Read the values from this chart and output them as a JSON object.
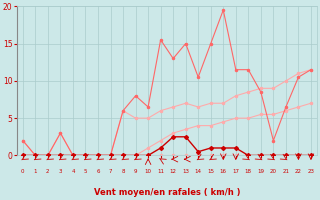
{
  "x": [
    0,
    1,
    2,
    3,
    4,
    5,
    6,
    7,
    8,
    9,
    10,
    11,
    12,
    13,
    14,
    15,
    16,
    17,
    18,
    19,
    20,
    21,
    22,
    23
  ],
  "line_jagged": [
    2,
    0,
    0,
    3,
    0,
    0,
    0,
    0,
    6,
    8,
    6.5,
    15.5,
    13,
    15,
    10.5,
    15,
    19.5,
    11.5,
    11.5,
    8.5,
    2,
    6.5,
    10.5,
    11.5
  ],
  "line_upper": [
    2,
    0,
    0,
    3,
    0,
    0,
    0,
    0,
    6,
    5,
    5,
    6,
    6.5,
    7,
    6.5,
    7,
    7,
    8,
    8.5,
    9,
    9,
    10,
    11,
    11.5
  ],
  "line_lower": [
    0,
    0,
    0,
    0,
    0,
    0,
    0,
    0,
    0,
    0,
    1,
    2,
    3,
    3.5,
    4,
    4,
    4.5,
    5,
    5,
    5.5,
    5.5,
    6,
    6.5,
    7
  ],
  "line_base": [
    0,
    0,
    0,
    0,
    0,
    0,
    0,
    0,
    0,
    0,
    0,
    0,
    0,
    0,
    0,
    0,
    0,
    0,
    0,
    0,
    0,
    0,
    0,
    0
  ],
  "line_freq": [
    0,
    0,
    0,
    0,
    0,
    0,
    0,
    0,
    0,
    0,
    0,
    1,
    2.5,
    2.5,
    0.5,
    1,
    1,
    1,
    0,
    0,
    0,
    0,
    0,
    0
  ],
  "arrow_angles": [
    225,
    225,
    225,
    225,
    225,
    225,
    225,
    225,
    225,
    225,
    90,
    135,
    180,
    180,
    225,
    225,
    270,
    270,
    315,
    315,
    315,
    315,
    270,
    270
  ],
  "bg_color": "#cce8e8",
  "grid_color": "#aacccc",
  "line_jagged_color": "#ff6666",
  "line_upper_color": "#ffaaaa",
  "line_lower_color": "#ffaaaa",
  "line_base_color": "#ffaaaa",
  "line_freq_color": "#cc0000",
  "xlabel": "Vent moyen/en rafales ( km/h )",
  "xlabel_color": "#cc0000",
  "tick_color": "#cc0000",
  "ylim": [
    0,
    20
  ],
  "xlim": [
    -0.5,
    23.5
  ]
}
